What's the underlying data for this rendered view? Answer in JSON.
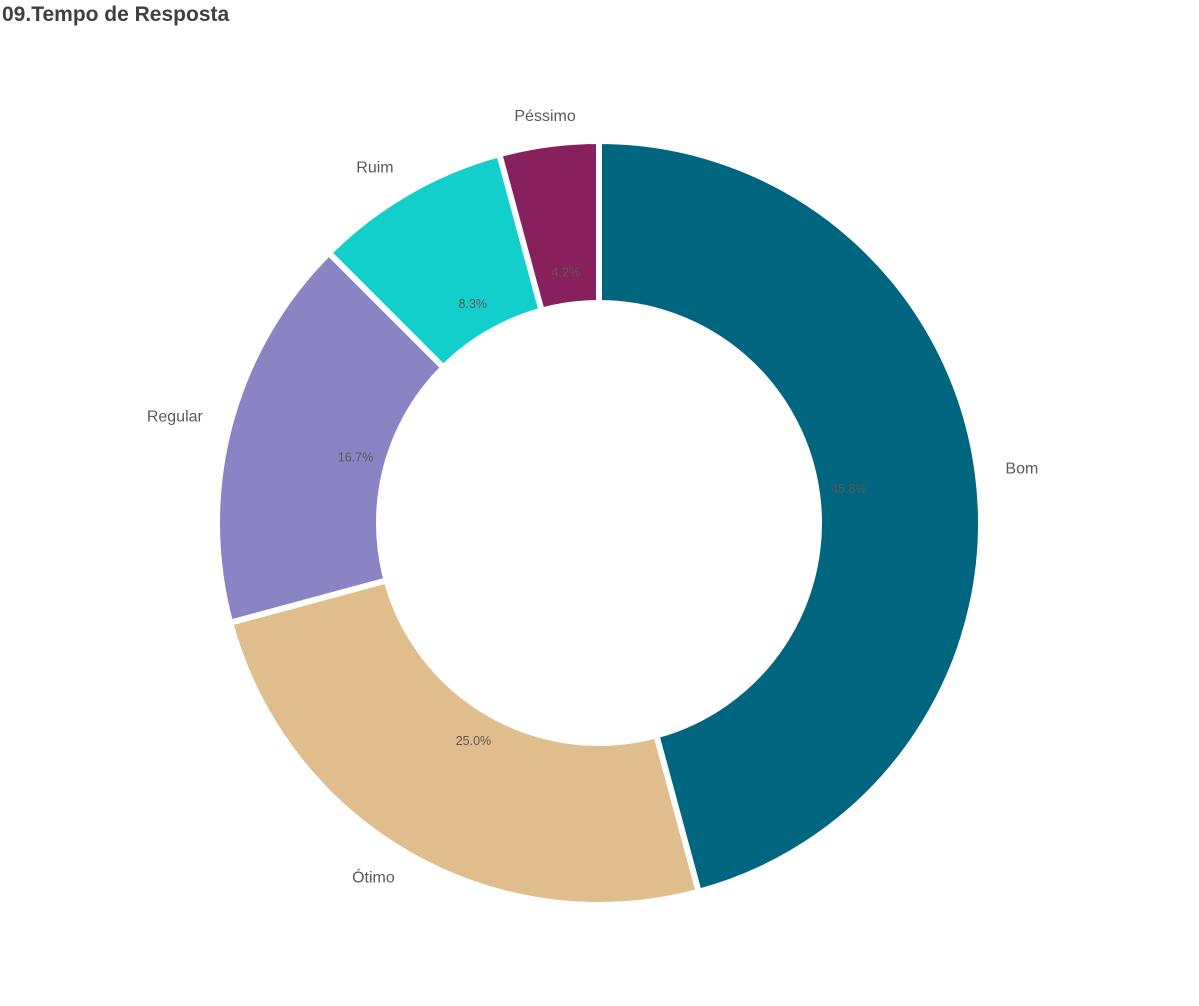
{
  "chart_data": {
    "type": "pie",
    "title": "09.Tempo de Resposta",
    "donut": true,
    "slices": [
      {
        "label": "Bom",
        "value": 45.8,
        "value_label": "45.8%",
        "color": "#00657F"
      },
      {
        "label": "Ótimo",
        "value": 25.0,
        "value_label": "25.0%",
        "color": "#E0BD8D"
      },
      {
        "label": "Regular",
        "value": 16.7,
        "value_label": "16.7%",
        "color": "#8A84C5"
      },
      {
        "label": "Ruim",
        "value": 8.3,
        "value_label": "8.3%",
        "color": "#13CFCB"
      },
      {
        "label": "Péssimo",
        "value": 4.2,
        "value_label": "4.2%",
        "color": "#87205C"
      }
    ],
    "legend": "none"
  }
}
